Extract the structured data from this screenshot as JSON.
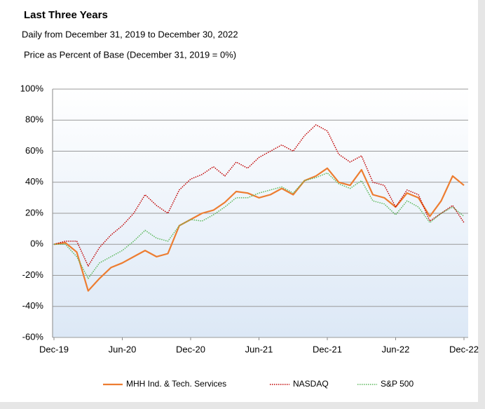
{
  "chart_data": {
    "type": "line",
    "title": "Last Three Years",
    "subtitle": "Daily from December 31, 2019 to December 30, 2022",
    "y_label": "Price as Percent of Base (December 31, 2019 = 0%)",
    "categories": [
      "Dec-19",
      null,
      null,
      null,
      null,
      null,
      "Jun-20",
      null,
      null,
      null,
      null,
      null,
      "Dec-20",
      null,
      null,
      null,
      null,
      null,
      "Jun-21",
      null,
      null,
      null,
      null,
      null,
      "Dec-21",
      null,
      null,
      null,
      null,
      null,
      "Jun-22",
      null,
      null,
      null,
      null,
      null,
      "Dec-22"
    ],
    "series": [
      {
        "name": "MHH Ind. & Tech. Services",
        "color": "#ed7d31",
        "style": "solid",
        "values": [
          0,
          1,
          -5,
          -30,
          -22,
          -15,
          -12,
          -8,
          -4,
          -8,
          -6,
          12,
          16,
          20,
          22,
          27,
          34,
          33,
          30,
          32,
          36,
          32,
          41,
          44,
          49,
          40,
          38,
          48,
          32,
          30,
          24,
          33,
          30,
          18,
          28,
          44,
          38
        ]
      },
      {
        "name": "NASDAQ",
        "color": "#c00000",
        "style": "dotted",
        "values": [
          0,
          2,
          2,
          -14,
          -2,
          6,
          12,
          20,
          32,
          25,
          20,
          35,
          42,
          45,
          50,
          44,
          53,
          49,
          56,
          60,
          64,
          60,
          70,
          77,
          73,
          58,
          53,
          57,
          40,
          38,
          24,
          35,
          32,
          15,
          20,
          25,
          14
        ]
      },
      {
        "name": "S&P 500",
        "color": "#5cb85c",
        "style": "dotted",
        "values": [
          0,
          0,
          -8,
          -22,
          -12,
          -8,
          -4,
          2,
          9,
          4,
          2,
          12,
          16,
          15,
          19,
          24,
          30,
          30,
          33,
          35,
          37,
          33,
          41,
          43,
          46,
          39,
          36,
          41,
          28,
          26,
          19,
          28,
          24,
          14,
          20,
          24,
          18
        ]
      }
    ],
    "ylim": [
      -60,
      100
    ],
    "yticks": [
      {
        "value": -60,
        "label": "-60%"
      },
      {
        "value": -40,
        "label": "-40%"
      },
      {
        "value": -20,
        "label": "-20%"
      },
      {
        "value": 0,
        "label": "0%"
      },
      {
        "value": 20,
        "label": "20%"
      },
      {
        "value": 40,
        "label": "40%"
      },
      {
        "value": 60,
        "label": "60%"
      },
      {
        "value": 80,
        "label": "80%"
      },
      {
        "value": 100,
        "label": "100%"
      }
    ],
    "grid": true,
    "legend": "bottom"
  }
}
